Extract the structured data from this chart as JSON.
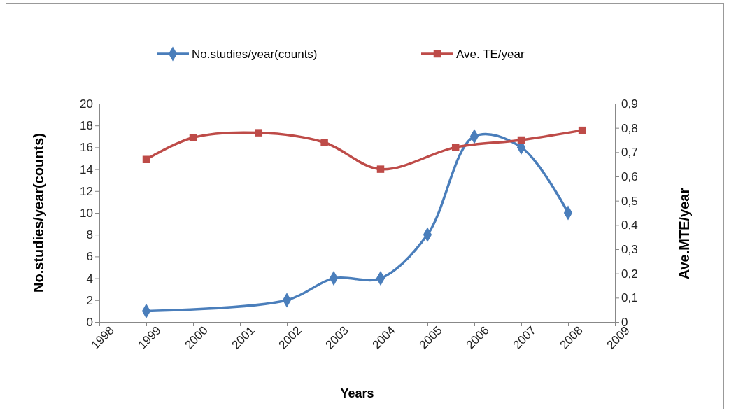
{
  "chart_data": {
    "type": "line",
    "xlabel": "Years",
    "ylabel": "No.studies/year(counts)",
    "y2label": "Ave.MTE/year",
    "xlim": [
      1998,
      2009
    ],
    "xticks": [
      1998,
      1999,
      2000,
      2001,
      2002,
      2003,
      2004,
      2005,
      2006,
      2007,
      2008,
      2009
    ],
    "ylim": [
      0,
      20
    ],
    "yticks": [
      0,
      2,
      4,
      6,
      8,
      10,
      12,
      14,
      16,
      18,
      20
    ],
    "y2lim": [
      0,
      0.9
    ],
    "y2ticks": [
      {
        "value": 0,
        "label": "0"
      },
      {
        "value": 0.1,
        "label": "0,1"
      },
      {
        "value": 0.2,
        "label": "0,2"
      },
      {
        "value": 0.3,
        "label": "0,3"
      },
      {
        "value": 0.4,
        "label": "0,4"
      },
      {
        "value": 0.5,
        "label": "0,5"
      },
      {
        "value": 0.6,
        "label": "0,6"
      },
      {
        "value": 0.7,
        "label": "0,7"
      },
      {
        "value": 0.8,
        "label": "0,8"
      },
      {
        "value": 0.9,
        "label": "0,9"
      }
    ],
    "legend": "top",
    "grid": false,
    "series": [
      {
        "name": "No.studies/year(counts)",
        "color": "#4a7ebb",
        "marker": "diamond",
        "x": [
          1999,
          2002,
          2003,
          2004,
          2005,
          2006,
          2007,
          2008
        ],
        "values": [
          1,
          2,
          4,
          4,
          8,
          17,
          16,
          10
        ]
      },
      {
        "name": "Ave. TE/year",
        "color": "#be4b48",
        "marker": "square",
        "axis": "y2",
        "x": [
          1999,
          2000,
          2001.4,
          2002.8,
          2004,
          2005.6,
          2007,
          2008.3
        ],
        "values": [
          0.67,
          0.76,
          0.78,
          0.74,
          0.63,
          0.72,
          0.75,
          0.79
        ]
      }
    ]
  }
}
